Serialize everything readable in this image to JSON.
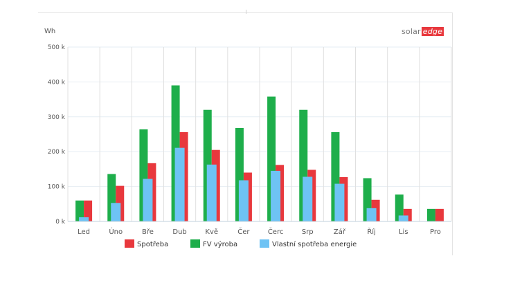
{
  "brand": {
    "part1": "solar",
    "part2": "edge"
  },
  "colors": {
    "spotreba": "#e8383d",
    "fv_vyroba": "#1eae4b",
    "vlastni": "#6ec3f4",
    "grid": "#dfe8f0",
    "axis_text": "#555555"
  },
  "chart_data": {
    "type": "bar",
    "ylabel": "Wh",
    "ylim": [
      0,
      500000
    ],
    "yticks": [
      {
        "value": 0,
        "label": "0 k"
      },
      {
        "value": 100000,
        "label": "100 k"
      },
      {
        "value": 200000,
        "label": "200 k"
      },
      {
        "value": 300000,
        "label": "300 k"
      },
      {
        "value": 400000,
        "label": "400 k"
      },
      {
        "value": 500000,
        "label": "500 k"
      }
    ],
    "categories": [
      "Led",
      "Úno",
      "Bře",
      "Dub",
      "Kvě",
      "Čer",
      "Čerc",
      "Srp",
      "Zář",
      "Říj",
      "Lis",
      "Pro"
    ],
    "grid": true,
    "legend_position": "bottom",
    "series": [
      {
        "name": "Spotřeba",
        "color": "#e8383d",
        "values": [
          60000,
          102000,
          167000,
          256000,
          205000,
          140000,
          162000,
          148000,
          127000,
          62000,
          36000,
          36000
        ]
      },
      {
        "name": "FV výroba",
        "color": "#1eae4b",
        "values": [
          60000,
          136000,
          264000,
          390000,
          320000,
          268000,
          358000,
          320000,
          256000,
          124000,
          77000,
          36000
        ]
      },
      {
        "name": "Vlastní spotřeba energie",
        "color": "#6ec3f4",
        "values": [
          12000,
          53000,
          122000,
          211000,
          163000,
          118000,
          145000,
          128000,
          108000,
          38000,
          17000,
          0
        ]
      }
    ]
  }
}
